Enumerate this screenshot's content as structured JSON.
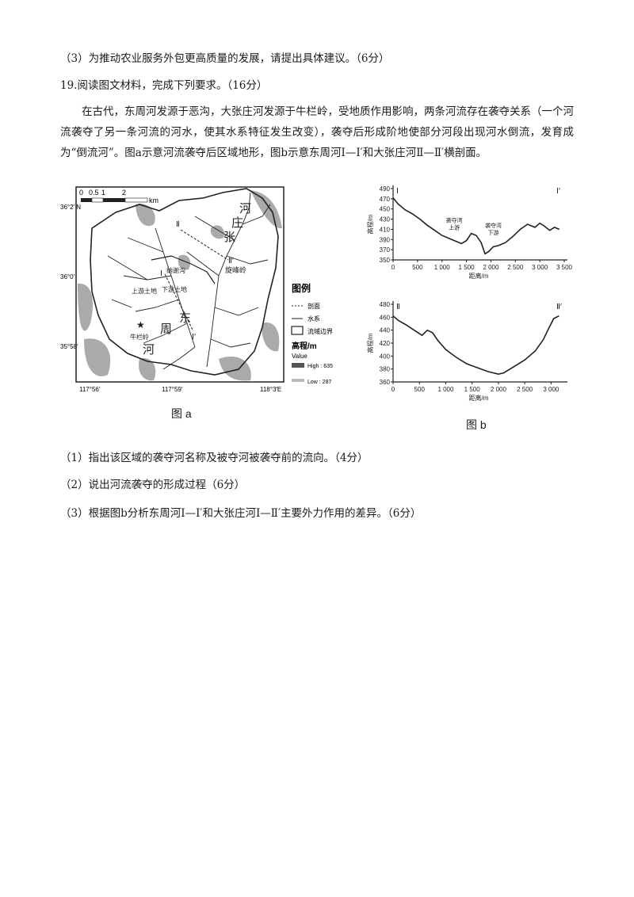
{
  "q18_item3": "（3）为推动农业服务外包更高质量的发展，请提出具体建议。（6分）",
  "q19_title": "19.阅读图文材料，完成下列要求。（16分）",
  "q19_material": "在古代，东周河发源于恶沟，大张庄河发源于牛栏岭，受地质作用影响，两条河流存在袭夺关系（一个河流袭夺了另一条河流的河水，使其水系特征发生改变），袭夺后形成阶地使部分河段出现河水倒流，发育成为“倒流河”。图a示意河流袭夺后区域地形，图b示意东周河Ⅰ—Ⅰ′和大张庄河Ⅱ—Ⅱ′横剖面。",
  "questions": [
    "（1）指出该区域的袭夺河名称及被夺河被袭夺前的流向。（4分）",
    "（2）说出河流袭夺的形成过程（6分）",
    "（3）根据图b分析东周河Ⅰ—Ⅰ′和大张庄河Ⅰ—Ⅱ′主要外力作用的差异。（6分）"
  ],
  "fig_a": {
    "caption": "图 a",
    "scale_labels": [
      "0",
      "0.5",
      "1",
      "2",
      "km"
    ],
    "lat_labels": [
      "36°2′ N",
      "36°0′",
      "35°58′"
    ],
    "lon_labels": [
      "117°56′",
      "117°59′",
      "118°3′E"
    ],
    "map_labels": {
      "river_zhang_1": "河",
      "river_zhang_2": "庄",
      "river_zhang_3": "张",
      "sec2": "Ⅱ",
      "sec2p": "Ⅱ′",
      "sec1": "Ⅰ",
      "sec1p": "Ⅰ′",
      "xuanfengling": "旋峰岭",
      "nanduogou": "纳谢沟",
      "upper_terrace": "上游土地",
      "lower_terrace": "下游土地",
      "niulanling": "牛栏岭",
      "dongzhou_1": "东",
      "dongzhou_2": "周",
      "dongzhou_3": "河"
    },
    "legend": {
      "title": "图例",
      "section": "剖面",
      "river": "水系",
      "boundary": "流域边界",
      "elev_title": "高程/m",
      "value": "Value",
      "high": "High : 635",
      "low": "Low : 287"
    }
  },
  "fig_b": {
    "caption": "图 b",
    "chart_data": [
      {
        "type": "line",
        "title": "",
        "xlabel": "距离/m",
        "ylabel": "高程/m",
        "start_label": "Ⅰ",
        "end_label": "Ⅰ′",
        "xlim": [
          0,
          3500
        ],
        "ylim": [
          350,
          490
        ],
        "xticks": [
          "0",
          "500",
          "1 000",
          "1 500",
          "2 000",
          "2 500",
          "3 000",
          "3 500"
        ],
        "yticks": [
          "490",
          "470",
          "450",
          "430",
          "410",
          "390",
          "370",
          "350"
        ],
        "annotations": [
          {
            "text": "袭夺湾上游",
            "x": 1250,
            "y": 405
          },
          {
            "text": "袭夺湾下游",
            "x": 2050,
            "y": 395
          }
        ],
        "x": [
          0,
          100,
          250,
          400,
          550,
          700,
          850,
          1000,
          1150,
          1300,
          1400,
          1500,
          1600,
          1700,
          1800,
          1880,
          1950,
          2050,
          2150,
          2300,
          2450,
          2600,
          2750,
          2900,
          3000,
          3100,
          3200,
          3300,
          3400
        ],
        "values": [
          472,
          460,
          448,
          440,
          430,
          418,
          408,
          398,
          392,
          386,
          382,
          388,
          402,
          398,
          384,
          362,
          366,
          376,
          378,
          384,
          396,
          410,
          420,
          414,
          422,
          416,
          408,
          414,
          410
        ]
      },
      {
        "type": "line",
        "title": "",
        "xlabel": "距离/m",
        "ylabel": "高程/m",
        "start_label": "Ⅱ",
        "end_label": "Ⅱ′",
        "xlim": [
          0,
          3250
        ],
        "ylim": [
          360,
          480
        ],
        "xticks": [
          "0",
          "500",
          "1 000",
          "1 500",
          "2 000",
          "2 500",
          "3 000"
        ],
        "yticks": [
          "480",
          "460",
          "440",
          "420",
          "400",
          "380",
          "360"
        ],
        "x": [
          0,
          100,
          250,
          400,
          550,
          650,
          750,
          850,
          1000,
          1200,
          1400,
          1600,
          1800,
          2000,
          2100,
          2300,
          2500,
          2700,
          2850,
          2950,
          3050,
          3150
        ],
        "values": [
          462,
          455,
          448,
          440,
          432,
          440,
          436,
          424,
          410,
          398,
          388,
          382,
          376,
          372,
          374,
          384,
          394,
          408,
          425,
          442,
          458,
          462
        ]
      }
    ]
  },
  "colors": {
    "text": "#1a1a1a",
    "map_ink": "#222222",
    "relief": "#9a9a9a"
  }
}
